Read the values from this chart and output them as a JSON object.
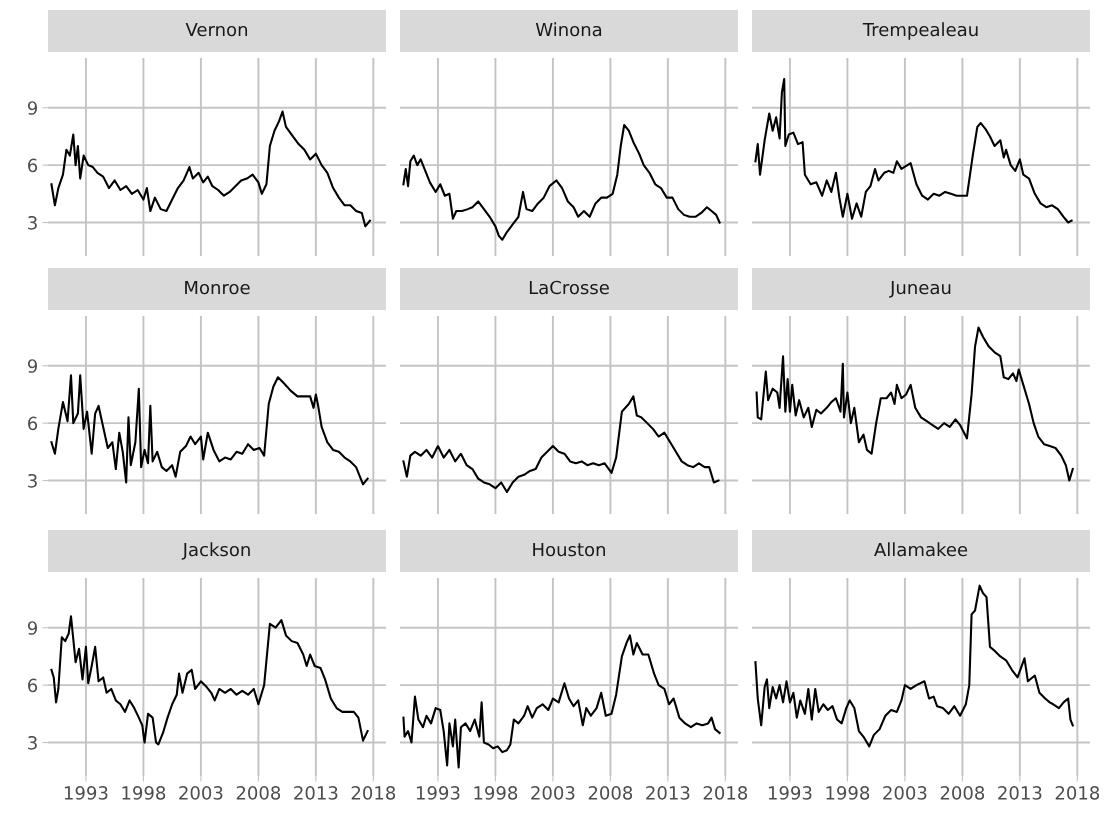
{
  "chart_data": [
    {
      "type": "line",
      "title": "Vernon",
      "color": "#000000",
      "grid": true,
      "tick_labels": "y",
      "xlim": [
        1989.7,
        2019.1
      ],
      "ylim": [
        1.25,
        11.6
      ],
      "xticks": [
        1993,
        1998,
        2003,
        2008,
        2013,
        2018
      ],
      "yticks": [
        3,
        6,
        9
      ],
      "x": [
        1990,
        1990.3,
        1990.6,
        1991,
        1991.3,
        1991.6,
        1991.9,
        1992.1,
        1992.3,
        1992.5,
        1992.8,
        1993.2,
        1993.6,
        1994,
        1994.5,
        1995,
        1995.5,
        1996,
        1996.5,
        1997,
        1997.5,
        1998,
        1998.3,
        1998.6,
        1999,
        1999.5,
        2000,
        2000.5,
        2001,
        2001.5,
        2002,
        2002.3,
        2002.8,
        2003.2,
        2003.6,
        2004,
        2004.5,
        2005,
        2005.5,
        2006,
        2006.5,
        2007,
        2007.5,
        2008,
        2008.3,
        2008.7,
        2009,
        2009.4,
        2009.8,
        2010.1,
        2010.4,
        2011,
        2011.5,
        2012,
        2012.5,
        2013,
        2013.5,
        2014,
        2014.5,
        2015,
        2015.5,
        2016,
        2016.5,
        2017,
        2017.3,
        2017.7
      ],
      "values": [
        5.0,
        3.9,
        4.8,
        5.5,
        6.8,
        6.5,
        7.6,
        6.0,
        7.0,
        5.3,
        6.5,
        6.0,
        5.9,
        5.6,
        5.4,
        4.8,
        5.2,
        4.7,
        4.9,
        4.5,
        4.7,
        4.2,
        4.8,
        3.6,
        4.3,
        3.7,
        3.6,
        4.2,
        4.8,
        5.2,
        5.9,
        5.3,
        5.6,
        5.1,
        5.4,
        4.9,
        4.7,
        4.4,
        4.6,
        4.9,
        5.2,
        5.3,
        5.5,
        5.1,
        4.5,
        5.0,
        7.0,
        7.8,
        8.3,
        8.8,
        8.0,
        7.5,
        7.1,
        6.8,
        6.3,
        6.6,
        6.0,
        5.6,
        4.8,
        4.3,
        3.9,
        3.9,
        3.6,
        3.5,
        2.8,
        3.1
      ]
    },
    {
      "type": "line",
      "title": "Winona",
      "color": "#000000",
      "grid": true,
      "tick_labels": false,
      "xlim": [
        1989.7,
        2019.1
      ],
      "ylim": [
        1.25,
        11.6
      ],
      "xticks": [
        1993,
        1998,
        2003,
        2008,
        2013,
        2018
      ],
      "yticks": [
        3,
        6,
        9
      ],
      "x": [
        1990,
        1990.2,
        1990.4,
        1990.6,
        1990.9,
        1991.2,
        1991.5,
        1991.9,
        1992.3,
        1992.8,
        1993.2,
        1993.6,
        1994,
        1994.3,
        1994.6,
        1995.1,
        1995.6,
        1996,
        1996.5,
        1997,
        1997.5,
        1998,
        1998.3,
        1998.6,
        1999,
        1999.5,
        2000,
        2000.4,
        2000.7,
        2001.2,
        2001.7,
        2002.2,
        2002.7,
        2003.3,
        2003.8,
        2004.3,
        2004.8,
        2005.2,
        2005.7,
        2006.2,
        2006.7,
        2007.2,
        2007.7,
        2008.2,
        2008.6,
        2008.9,
        2009.2,
        2009.6,
        2010,
        2010.5,
        2010.9,
        2011.4,
        2011.9,
        2012.4,
        2012.9,
        2013.4,
        2013.9,
        2014.4,
        2014.9,
        2015.4,
        2015.9,
        2016.4,
        2016.8,
        2017.2,
        2017.5
      ],
      "values": [
        5.0,
        5.8,
        4.9,
        6.2,
        6.5,
        6.0,
        6.3,
        5.7,
        5.1,
        4.6,
        5.0,
        4.4,
        4.5,
        3.2,
        3.6,
        3.6,
        3.7,
        3.8,
        4.1,
        3.7,
        3.3,
        2.8,
        2.3,
        2.1,
        2.5,
        2.9,
        3.3,
        4.6,
        3.7,
        3.6,
        4.0,
        4.3,
        4.9,
        5.2,
        4.8,
        4.1,
        3.8,
        3.3,
        3.6,
        3.3,
        4.0,
        4.3,
        4.3,
        4.5,
        5.5,
        7.0,
        8.1,
        7.8,
        7.2,
        6.6,
        6.0,
        5.6,
        5.0,
        4.8,
        4.3,
        4.3,
        3.7,
        3.4,
        3.3,
        3.3,
        3.5,
        3.8,
        3.6,
        3.4,
        3.0
      ]
    },
    {
      "type": "line",
      "title": "Trempealeau",
      "color": "#000000",
      "grid": true,
      "tick_labels": false,
      "xlim": [
        1989.7,
        2019.1
      ],
      "ylim": [
        1.25,
        11.6
      ],
      "xticks": [
        1993,
        1998,
        2003,
        2008,
        2013,
        2018
      ],
      "yticks": [
        3,
        6,
        9
      ],
      "x": [
        1990,
        1990.2,
        1990.4,
        1990.8,
        1991.2,
        1991.5,
        1991.8,
        1992.1,
        1992.3,
        1992.5,
        1992.6,
        1992.9,
        1993.3,
        1993.7,
        1994.1,
        1994.3,
        1994.8,
        1995.3,
        1995.8,
        1996.2,
        1996.6,
        1997,
        1997.3,
        1997.6,
        1998,
        1998.4,
        1998.8,
        1999.2,
        1999.6,
        2000,
        2000.4,
        2000.7,
        2001.2,
        2001.6,
        2002,
        2002.3,
        2002.7,
        2003.5,
        2004,
        2004.5,
        2005,
        2005.5,
        2006,
        2006.5,
        2007,
        2007.5,
        2008,
        2008.4,
        2008.9,
        2009.3,
        2009.6,
        2010,
        2010.4,
        2010.8,
        2011.3,
        2011.6,
        2011.8,
        2012.2,
        2012.6,
        2013,
        2013.3,
        2013.8,
        2014.3,
        2014.8,
        2015.3,
        2015.8,
        2016.3,
        2016.8,
        2017.2,
        2017.5
      ],
      "values": [
        6.2,
        7.1,
        5.5,
        7.3,
        8.7,
        7.8,
        8.5,
        7.4,
        9.8,
        10.5,
        7.0,
        7.6,
        7.7,
        7.1,
        7.2,
        5.5,
        5.0,
        5.1,
        4.4,
        5.2,
        4.6,
        5.6,
        4.3,
        3.3,
        4.5,
        3.2,
        4.0,
        3.3,
        4.6,
        4.9,
        5.8,
        5.2,
        5.6,
        5.7,
        5.6,
        6.2,
        5.8,
        6.1,
        5.0,
        4.4,
        4.2,
        4.5,
        4.4,
        4.6,
        4.5,
        4.4,
        4.4,
        4.4,
        6.5,
        8.0,
        8.2,
        7.9,
        7.5,
        7.0,
        7.3,
        6.4,
        6.8,
        6.0,
        5.7,
        6.3,
        5.5,
        5.3,
        4.5,
        4.0,
        3.8,
        3.9,
        3.7,
        3.3,
        3.0,
        3.1
      ]
    },
    {
      "type": "line",
      "title": "Monroe",
      "color": "#000000",
      "grid": true,
      "tick_labels": "y",
      "xlim": [
        1989.7,
        2019.1
      ],
      "ylim": [
        1.25,
        11.6
      ],
      "xticks": [
        1993,
        1998,
        2003,
        2008,
        2013,
        2018
      ],
      "yticks": [
        3,
        6,
        9
      ],
      "x": [
        1990,
        1990.3,
        1990.6,
        1991,
        1991.4,
        1991.7,
        1991.9,
        1992.3,
        1992.5,
        1992.8,
        1993.1,
        1993.5,
        1993.8,
        1994.1,
        1994.5,
        1994.9,
        1995.3,
        1995.6,
        1995.9,
        1996.2,
        1996.5,
        1996.7,
        1996.9,
        1997.3,
        1997.6,
        1997.8,
        1998.1,
        1998.4,
        1998.6,
        1998.8,
        1999.2,
        1999.6,
        2000,
        2000.5,
        2000.8,
        2001.2,
        2001.7,
        2002.1,
        2002.5,
        2003,
        2003.2,
        2003.6,
        2004.1,
        2004.6,
        2005.1,
        2005.6,
        2006.1,
        2006.6,
        2007.1,
        2007.6,
        2008.1,
        2008.5,
        2008.9,
        2009.3,
        2009.7,
        2010.2,
        2010.8,
        2011.4,
        2012,
        2012.5,
        2012.8,
        2013,
        2013.2,
        2013.5,
        2014,
        2014.5,
        2015,
        2015.5,
        2016,
        2016.5,
        2017.1,
        2017.5
      ],
      "values": [
        5.0,
        4.4,
        5.7,
        7.1,
        6.1,
        8.5,
        6.0,
        6.5,
        8.5,
        5.7,
        6.6,
        4.4,
        6.5,
        6.9,
        5.8,
        4.7,
        5.0,
        3.6,
        5.5,
        4.5,
        2.9,
        6.3,
        3.8,
        5.0,
        7.8,
        3.7,
        4.6,
        3.9,
        6.9,
        4.0,
        4.5,
        3.7,
        3.5,
        3.8,
        3.2,
        4.5,
        4.8,
        5.3,
        4.9,
        5.3,
        4.1,
        5.5,
        4.6,
        4.0,
        4.2,
        4.1,
        4.5,
        4.4,
        4.9,
        4.6,
        4.7,
        4.3,
        7.0,
        7.9,
        8.4,
        8.1,
        7.7,
        7.4,
        7.4,
        7.4,
        6.8,
        7.5,
        6.9,
        5.8,
        5.0,
        4.6,
        4.5,
        4.2,
        4.0,
        3.7,
        2.8,
        3.1
      ]
    },
    {
      "type": "line",
      "title": "LaCrosse",
      "color": "#000000",
      "grid": true,
      "tick_labels": false,
      "xlim": [
        1989.7,
        2019.1
      ],
      "ylim": [
        1.25,
        11.6
      ],
      "xticks": [
        1993,
        1998,
        2003,
        2008,
        2013,
        2018
      ],
      "yticks": [
        3,
        6,
        9
      ],
      "x": [
        1990,
        1990.3,
        1990.6,
        1991,
        1991.5,
        1992,
        1992.5,
        1993,
        1993.5,
        1994,
        1994.5,
        1995,
        1995.5,
        1996,
        1996.5,
        1997,
        1997.5,
        1998,
        1998.5,
        1999,
        1999.5,
        2000,
        2000.5,
        2001,
        2001.5,
        2002,
        2002.5,
        2003,
        2003.5,
        2004,
        2004.5,
        2005,
        2005.5,
        2006,
        2006.5,
        2007,
        2007.5,
        2008.1,
        2008.5,
        2009,
        2009.6,
        2010,
        2010.3,
        2010.7,
        2011.2,
        2011.7,
        2012.2,
        2012.7,
        2013.2,
        2013.7,
        2014.2,
        2014.7,
        2015.2,
        2015.7,
        2016.2,
        2016.6,
        2017,
        2017.4
      ],
      "values": [
        4.0,
        3.2,
        4.3,
        4.5,
        4.3,
        4.6,
        4.2,
        4.8,
        4.2,
        4.6,
        4.0,
        4.4,
        3.8,
        3.6,
        3.1,
        2.9,
        2.8,
        2.6,
        2.9,
        2.4,
        2.9,
        3.2,
        3.3,
        3.5,
        3.6,
        4.2,
        4.5,
        4.8,
        4.5,
        4.4,
        4.0,
        3.9,
        4.0,
        3.8,
        3.9,
        3.8,
        3.9,
        3.4,
        4.2,
        6.6,
        7.0,
        7.4,
        6.4,
        6.3,
        6.0,
        5.7,
        5.3,
        5.5,
        5.0,
        4.5,
        4.0,
        3.8,
        3.7,
        3.9,
        3.7,
        3.7,
        2.9,
        3.0
      ]
    },
    {
      "type": "line",
      "title": "Juneau",
      "color": "#000000",
      "grid": true,
      "tick_labels": false,
      "xlim": [
        1989.7,
        2019.1
      ],
      "ylim": [
        1.25,
        11.6
      ],
      "xticks": [
        1993,
        1998,
        2003,
        2008,
        2013,
        2018
      ],
      "yticks": [
        3,
        6,
        9
      ],
      "x": [
        1990.1,
        1990.2,
        1990.5,
        1990.9,
        1991.1,
        1991.5,
        1991.9,
        1992.1,
        1992.4,
        1992.6,
        1992.8,
        1993,
        1993.2,
        1993.5,
        1993.8,
        1994.2,
        1994.6,
        1994.9,
        1995.3,
        1995.7,
        1996.2,
        1996.6,
        1997,
        1997.4,
        1997.6,
        1997.7,
        1998,
        1998.3,
        1998.6,
        1999,
        1999.4,
        1999.7,
        2000.1,
        2000.5,
        2000.9,
        2001.4,
        2001.8,
        2002.1,
        2002.3,
        2002.7,
        2003.1,
        2003.5,
        2003.9,
        2004.4,
        2004.9,
        2005.4,
        2005.9,
        2006.4,
        2006.9,
        2007.4,
        2007.8,
        2008.4,
        2008.8,
        2009.1,
        2009.4,
        2009.8,
        2010.3,
        2010.8,
        2011.3,
        2011.6,
        2012,
        2012.4,
        2012.7,
        2012.9,
        2013.3,
        2013.8,
        2014.2,
        2014.6,
        2015.1,
        2015.6,
        2016.1,
        2016.6,
        2017,
        2017.3,
        2017.6
      ],
      "values": [
        7.6,
        6.3,
        6.2,
        8.7,
        7.2,
        7.8,
        7.6,
        6.8,
        9.5,
        6.6,
        8.3,
        6.6,
        8.0,
        6.4,
        7.2,
        6.3,
        6.8,
        5.8,
        6.7,
        6.5,
        6.8,
        7.1,
        7.3,
        6.6,
        9.1,
        6.3,
        7.6,
        6.0,
        6.8,
        5.0,
        5.4,
        4.6,
        4.4,
        6.0,
        7.3,
        7.3,
        7.6,
        7.0,
        8.0,
        7.3,
        7.5,
        8.0,
        6.8,
        6.3,
        6.1,
        5.9,
        5.7,
        6.0,
        5.8,
        6.2,
        5.9,
        5.2,
        7.5,
        10.0,
        11.0,
        10.5,
        10.0,
        9.7,
        9.5,
        8.4,
        8.3,
        8.6,
        8.2,
        8.8,
        8.0,
        7.0,
        6.0,
        5.3,
        4.9,
        4.8,
        4.7,
        4.3,
        3.8,
        3.0,
        3.6
      ]
    },
    {
      "type": "line",
      "title": "Jackson",
      "color": "#000000",
      "grid": true,
      "xlim": [
        1989.7,
        2019.1
      ],
      "ylim": [
        1.25,
        11.6
      ],
      "xticks": [
        1993,
        1998,
        2003,
        2008,
        2013,
        2018
      ],
      "yticks": [
        3,
        6,
        9
      ],
      "x": [
        1990,
        1990.2,
        1990.4,
        1990.6,
        1990.9,
        1991.2,
        1991.5,
        1991.7,
        1992.1,
        1992.4,
        1992.7,
        1993,
        1993.2,
        1993.5,
        1993.8,
        1994.1,
        1994.5,
        1994.8,
        1995.2,
        1995.6,
        1996,
        1996.4,
        1996.8,
        1997.2,
        1997.6,
        1997.9,
        1998.1,
        1998.4,
        1998.8,
        1999.1,
        1999.3,
        1999.7,
        2000.1,
        2000.5,
        2000.9,
        2001.1,
        2001.4,
        2001.8,
        2002.2,
        2002.5,
        2003,
        2003.5,
        2003.9,
        2004.2,
        2004.6,
        2005.1,
        2005.6,
        2006.1,
        2006.6,
        2007.1,
        2007.6,
        2008,
        2008.5,
        2009,
        2009.5,
        2010,
        2010.4,
        2010.9,
        2011.4,
        2011.9,
        2012.2,
        2012.5,
        2012.9,
        2013.4,
        2013.8,
        2014.3,
        2014.8,
        2015.3,
        2015.8,
        2016.3,
        2016.7,
        2017.1,
        2017.5
      ],
      "values": [
        6.8,
        6.4,
        5.1,
        5.8,
        8.5,
        8.3,
        8.7,
        9.6,
        7.2,
        7.9,
        6.3,
        8.0,
        6.1,
        7.0,
        8.0,
        6.2,
        6.4,
        5.6,
        5.8,
        5.2,
        5.0,
        4.6,
        5.2,
        4.8,
        4.3,
        3.9,
        3.0,
        4.5,
        4.3,
        3.0,
        2.9,
        3.5,
        4.3,
        5.0,
        5.5,
        6.6,
        5.6,
        6.6,
        6.8,
        5.8,
        6.2,
        5.9,
        5.6,
        5.2,
        5.8,
        5.6,
        5.8,
        5.5,
        5.7,
        5.5,
        5.8,
        5.0,
        6.0,
        9.2,
        9.0,
        9.4,
        8.6,
        8.3,
        8.2,
        7.6,
        7.0,
        7.6,
        7.0,
        6.9,
        6.3,
        5.3,
        4.8,
        4.6,
        4.6,
        4.6,
        4.3,
        3.1,
        3.6
      ]
    },
    {
      "type": "line",
      "title": "Houston",
      "color": "#000000",
      "grid": true,
      "tick_labels": "x",
      "xlim": [
        1989.7,
        2019.1
      ],
      "ylim": [
        1.25,
        11.6
      ],
      "xticks": [
        1993,
        1998,
        2003,
        2008,
        2013,
        2018
      ],
      "yticks": [
        3,
        6,
        9
      ],
      "x": [
        1990,
        1990.1,
        1990.4,
        1990.7,
        1991,
        1991.3,
        1991.7,
        1992,
        1992.4,
        1992.8,
        1993.2,
        1993.5,
        1993.8,
        1994,
        1994.3,
        1994.5,
        1994.8,
        1995,
        1995.4,
        1995.8,
        1996.2,
        1996.6,
        1996.8,
        1997,
        1997.4,
        1997.8,
        1998.2,
        1998.6,
        1999,
        1999.3,
        1999.6,
        2000,
        2000.5,
        2000.8,
        2001.2,
        2001.6,
        2002.1,
        2002.6,
        2003,
        2003.5,
        2004,
        2004.4,
        2004.8,
        2005.2,
        2005.6,
        2005.9,
        2006.3,
        2006.8,
        2007.2,
        2007.6,
        2008.1,
        2008.5,
        2009,
        2009.4,
        2009.7,
        2010,
        2010.3,
        2010.8,
        2011.3,
        2011.8,
        2012.2,
        2012.7,
        2013.1,
        2013.5,
        2014,
        2014.5,
        2015,
        2015.5,
        2016,
        2016.5,
        2016.8,
        2017.1,
        2017.5
      ],
      "values": [
        4.3,
        3.3,
        3.6,
        3.0,
        5.4,
        4.2,
        3.8,
        4.4,
        4.0,
        4.8,
        4.7,
        3.6,
        1.8,
        4.0,
        2.8,
        4.2,
        1.7,
        3.8,
        4.0,
        3.6,
        4.2,
        3.3,
        5.1,
        3.0,
        2.9,
        2.7,
        2.8,
        2.5,
        2.6,
        2.9,
        4.2,
        4.0,
        4.4,
        4.9,
        4.3,
        4.8,
        5.0,
        4.7,
        5.3,
        5.1,
        6.1,
        5.3,
        4.9,
        5.2,
        3.9,
        4.8,
        4.4,
        4.8,
        5.6,
        4.4,
        4.5,
        5.5,
        7.5,
        8.2,
        8.6,
        7.6,
        8.2,
        7.6,
        7.6,
        6.6,
        6.0,
        5.8,
        5.0,
        5.3,
        4.3,
        4.0,
        3.8,
        4.0,
        3.9,
        4.0,
        4.3,
        3.7,
        3.5
      ]
    },
    {
      "type": "line",
      "title": "Allamakee",
      "color": "#000000",
      "grid": true,
      "tick_labels": "x",
      "xlim": [
        1989.7,
        2019.1
      ],
      "ylim": [
        1.25,
        11.6
      ],
      "xticks": [
        1993,
        1998,
        2003,
        2008,
        2013,
        2018
      ],
      "yticks": [
        3,
        6,
        9
      ],
      "x": [
        1990,
        1990.2,
        1990.5,
        1990.8,
        1991,
        1991.2,
        1991.5,
        1991.8,
        1992.1,
        1992.4,
        1992.7,
        1993,
        1993.3,
        1993.6,
        1993.9,
        1994.3,
        1994.6,
        1994.9,
        1995.2,
        1995.5,
        1995.9,
        1996.3,
        1996.7,
        1997.1,
        1997.5,
        1997.9,
        1998.2,
        1998.6,
        1999,
        1999.4,
        1999.9,
        2000.3,
        2000.8,
        2001.3,
        2001.8,
        2002.3,
        2002.7,
        2003,
        2003.5,
        2004,
        2004.7,
        2005.1,
        2005.5,
        2005.8,
        2006.3,
        2006.8,
        2007.3,
        2007.8,
        2008.3,
        2008.6,
        2008.8,
        2009.1,
        2009.5,
        2009.8,
        2010.1,
        2010.4,
        2010.8,
        2011.3,
        2011.8,
        2012.3,
        2012.8,
        2013.4,
        2013.7,
        2014.3,
        2014.7,
        2015.2,
        2015.6,
        2015.9,
        2016.4,
        2016.8,
        2017.2,
        2017.4,
        2017.6
      ],
      "values": [
        7.2,
        5.3,
        3.9,
        5.9,
        6.3,
        4.8,
        5.9,
        5.3,
        6.0,
        5.1,
        6.2,
        5.1,
        5.6,
        4.3,
        5.2,
        4.5,
        5.8,
        4.2,
        5.8,
        4.6,
        5.0,
        4.7,
        4.9,
        4.2,
        4.0,
        4.8,
        5.2,
        4.8,
        3.6,
        3.3,
        2.8,
        3.4,
        3.7,
        4.4,
        4.7,
        4.6,
        5.2,
        6.0,
        5.8,
        6.0,
        6.2,
        5.3,
        5.4,
        4.9,
        4.8,
        4.5,
        4.9,
        4.4,
        5.0,
        6.0,
        9.7,
        9.9,
        11.2,
        10.8,
        10.6,
        8.0,
        7.8,
        7.5,
        7.3,
        6.8,
        6.4,
        7.4,
        6.2,
        6.5,
        5.6,
        5.3,
        5.1,
        5.0,
        4.8,
        5.1,
        5.3,
        4.2,
        3.9
      ]
    }
  ]
}
